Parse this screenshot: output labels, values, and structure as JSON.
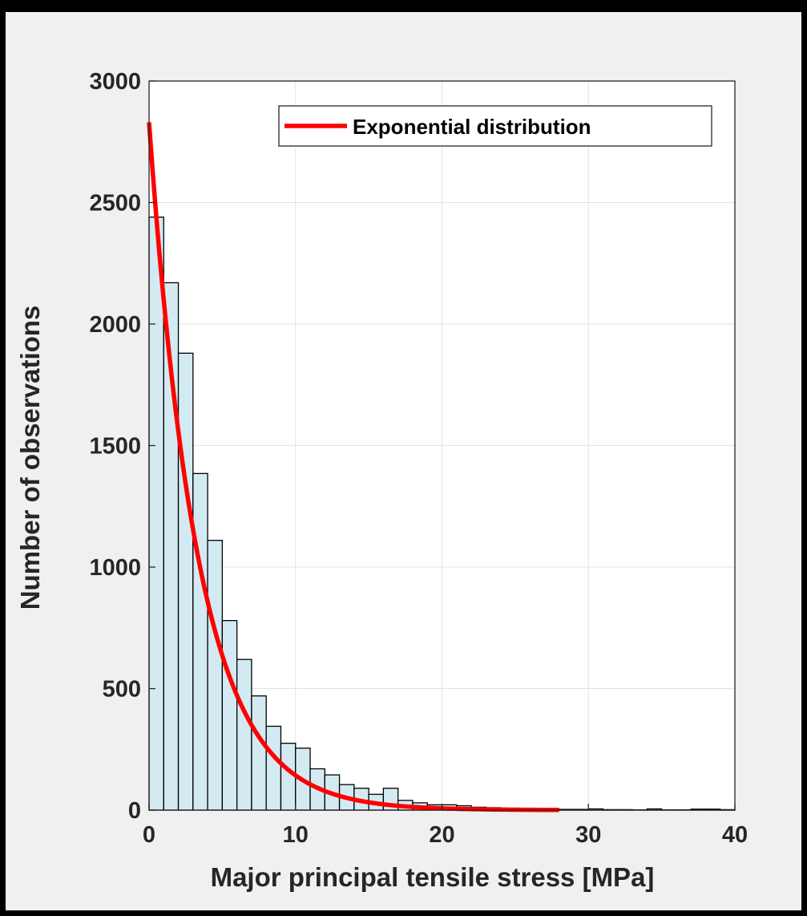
{
  "colors": {
    "frame": "#000000",
    "figure_bg": "#f0f0f0",
    "axes_bg": "#ffffff",
    "bar_fill": "#d4eaf3",
    "bar_edge": "#000000",
    "fit_line": "#ff0000",
    "grid": "#e3e3e3",
    "axis": "#262626"
  },
  "chart_data": {
    "type": "bar",
    "xlabel": "Major principal tensile stress [MPa]",
    "ylabel": "Number of observations",
    "xlim": [
      0,
      40
    ],
    "ylim": [
      0,
      3000
    ],
    "grid": true,
    "x_ticks": [
      0,
      10,
      20,
      30,
      40
    ],
    "y_ticks": [
      0,
      500,
      1000,
      1500,
      2000,
      2500,
      3000
    ],
    "x_tick_labels": [
      "0",
      "10",
      "20",
      "30",
      "40"
    ],
    "y_tick_labels": [
      "0",
      "500",
      "1000",
      "1500",
      "2000",
      "2500",
      "3000"
    ],
    "legend_position": "top-right",
    "histogram": {
      "bin_width": 1,
      "bin_centers": [
        0.5,
        1.5,
        2.5,
        3.5,
        4.5,
        5.5,
        6.5,
        7.5,
        8.5,
        9.5,
        10.5,
        11.5,
        12.5,
        13.5,
        14.5,
        15.5,
        16.5,
        17.5,
        18.5,
        19.5,
        20.5,
        21.5,
        22.5,
        23.5,
        24.5,
        25.5,
        26.5,
        27.5,
        28.5,
        29.5,
        30.5,
        31.5,
        32.5,
        33.5,
        34.5,
        35.5,
        36.5,
        37.5,
        38.5,
        39.5
      ],
      "counts": [
        2440,
        2170,
        1880,
        1385,
        1110,
        780,
        620,
        470,
        345,
        275,
        255,
        170,
        145,
        105,
        90,
        65,
        90,
        40,
        30,
        22,
        22,
        18,
        12,
        10,
        8,
        6,
        5,
        4,
        3,
        3,
        5,
        2,
        2,
        1,
        5,
        1,
        1,
        4,
        4,
        2
      ]
    },
    "series": [
      {
        "name": "Exponential distribution",
        "type": "line",
        "x_start": 0,
        "x_end": 28,
        "y_at_0": 2830,
        "mean": 3.35
      }
    ]
  }
}
